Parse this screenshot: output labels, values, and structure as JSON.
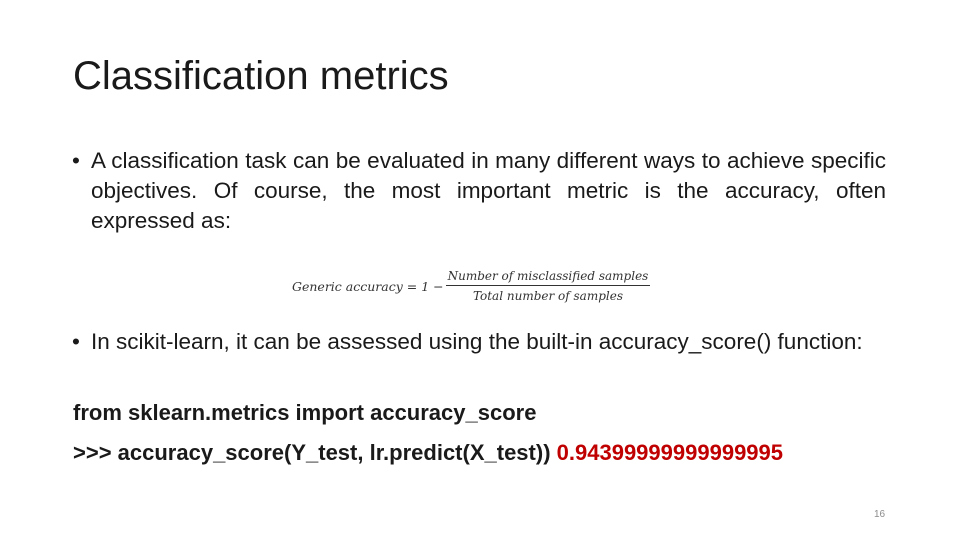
{
  "slide": {
    "title": "Classification metrics",
    "bullets": [
      {
        "marker": "•",
        "text": "A classification task can be evaluated in many different ways to achieve specific objectives. Of course, the most important metric is the accuracy, often expressed as:"
      },
      {
        "marker": "•",
        "text": "In scikit-learn, it can be assessed using the built-in accuracy_score() function:"
      }
    ],
    "formula": {
      "lhs": "Generic accuracy = 1 −",
      "numerator": "Number of misclassified samples",
      "denominator": "Total number of samples"
    },
    "code": {
      "line1": "from sklearn.metrics import accuracy_score",
      "line2_call": ">>> accuracy_score(Y_test, lr.predict(X_test))",
      "line2_result": "0.94399999999999995"
    },
    "page_number": "16",
    "colors": {
      "text": "#1a1a1a",
      "result": "#c00000",
      "page_number": "#8c8c8c"
    }
  }
}
